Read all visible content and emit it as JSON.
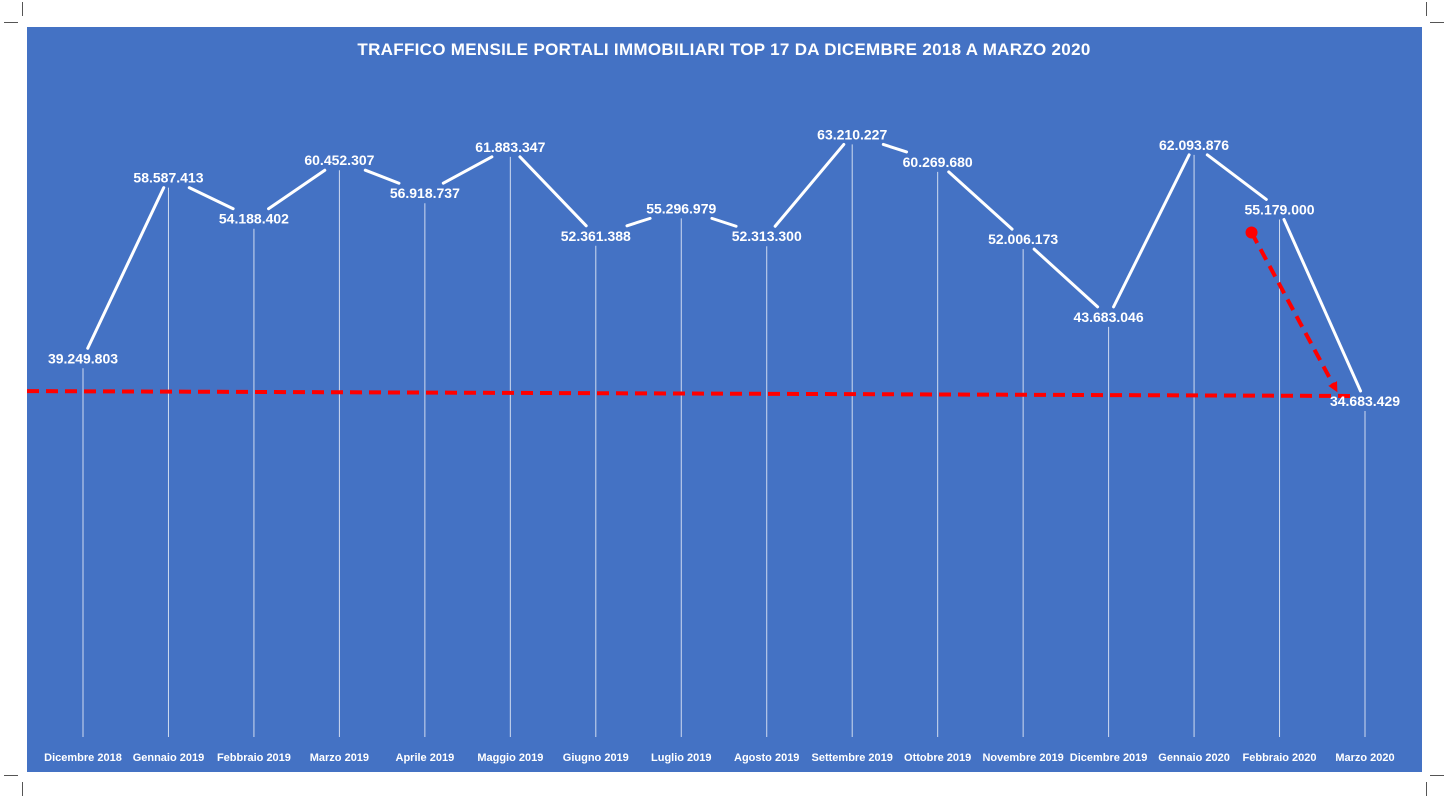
{
  "colors": {
    "background": "#4472c4",
    "line": "#ffffff",
    "drop_line": "#ffffff",
    "annotation": "#ff0000",
    "text": "#ffffff"
  },
  "chart_data": {
    "type": "line",
    "title": "TRAFFICO MENSILE PORTALI IMMOBILIARI TOP 17 DA DICEMBRE 2018 A MARZO 2020",
    "xlabel": "",
    "ylabel": "",
    "ylim": [
      0,
      70000000
    ],
    "grid": false,
    "legend": "none",
    "drop_lines": true,
    "categories": [
      "Dicembre 2018",
      "Gennaio 2019",
      "Febbraio 2019",
      "Marzo 2019",
      "Aprile 2019",
      "Maggio 2019",
      "Giugno 2019",
      "Luglio 2019",
      "Agosto 2019",
      "Settembre 2019",
      "Ottobre 2019",
      "Novembre 2019",
      "Dicembre 2019",
      "Gennaio 2020",
      "Febbraio 2020",
      "Marzo 2020"
    ],
    "values": [
      39249803,
      58587413,
      54188402,
      60452307,
      56918737,
      61883347,
      52361388,
      55296979,
      52313300,
      63210227,
      60269680,
      52006173,
      43683046,
      62093876,
      55179000,
      34683429
    ],
    "data_labels": [
      "39.249.803",
      "58.587.413",
      "54.188.402",
      "60.452.307",
      "56.918.737",
      "61.883.347",
      "52.361.388",
      "55.296.979",
      "52.313.300",
      "63.210.227",
      "60.269.680",
      "52.006.173",
      "43.683.046",
      "62.093.876",
      "55.179.000",
      "34.683.429"
    ],
    "annotations": [
      {
        "kind": "dashed-line",
        "color": "#ff0000",
        "from": {
          "x": "Dicembre 2018",
          "y": 37000000
        },
        "to": {
          "x": "Marzo 2020",
          "y": 36500000
        },
        "extends_to_left_edge": true
      },
      {
        "kind": "dashed-arrow",
        "color": "#ff0000",
        "start_marker": "dot",
        "from": {
          "x": "Febbraio 2020",
          "y": 54000000
        },
        "to": {
          "x": "Marzo 2020",
          "y": 36300000
        }
      }
    ]
  }
}
